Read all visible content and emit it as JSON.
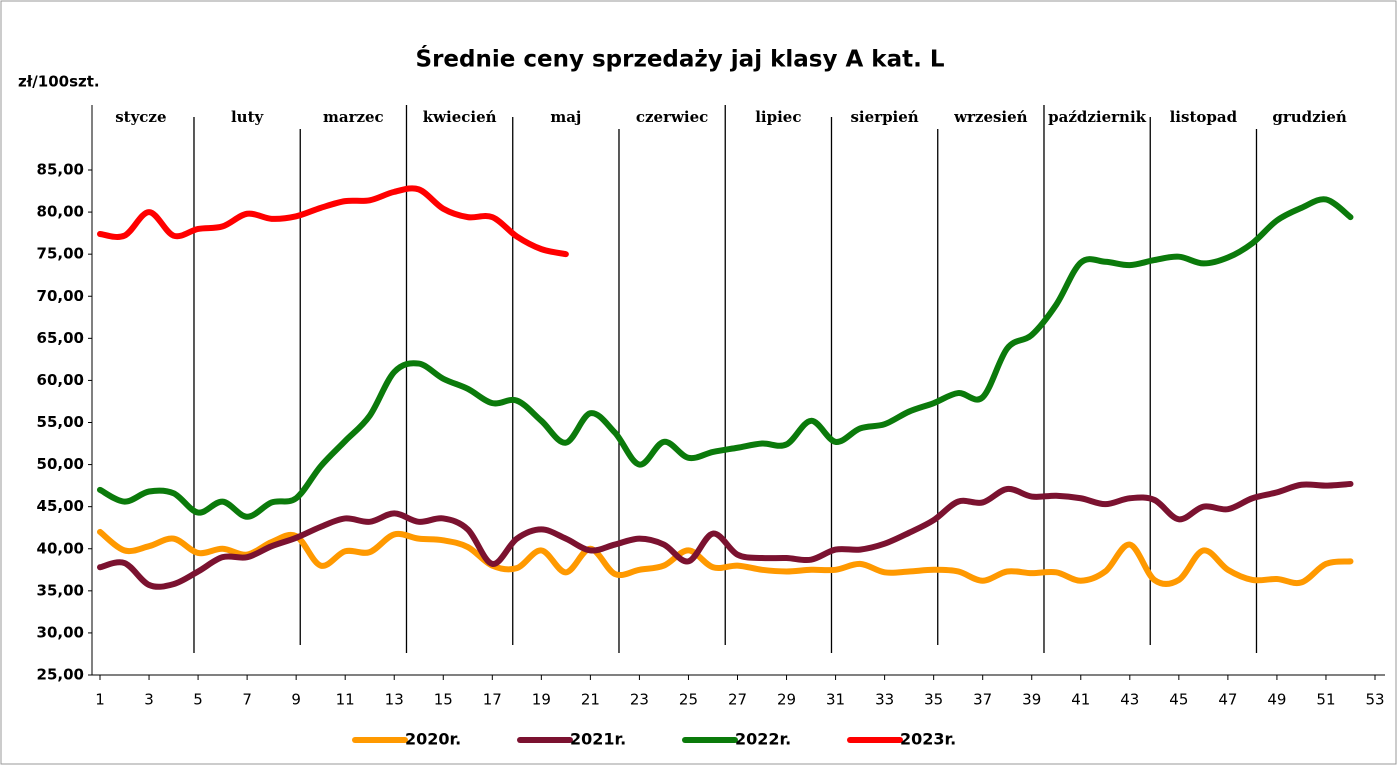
{
  "chart_data": {
    "type": "line",
    "title": "Średnie ceny sprzedaży jaj klasy A kat.  L",
    "y_label": "zł/100szt.",
    "months": [
      "stycze",
      "luty",
      "marzec",
      "kwiecień",
      "maj",
      "czerwiec",
      "lipiec",
      "sierpień",
      "wrzesień",
      "październik",
      "listopad",
      "grudzień"
    ],
    "x": [
      1,
      2,
      3,
      4,
      5,
      6,
      7,
      8,
      9,
      10,
      11,
      12,
      13,
      14,
      15,
      16,
      17,
      18,
      19,
      20,
      21,
      22,
      23,
      24,
      25,
      26,
      27,
      28,
      29,
      30,
      31,
      32,
      33,
      34,
      35,
      36,
      37,
      38,
      39,
      40,
      41,
      42,
      43,
      44,
      45,
      46,
      47,
      48,
      49,
      50,
      51,
      52
    ],
    "xlim": [
      1,
      53
    ],
    "xticks": [
      1,
      3,
      5,
      7,
      9,
      11,
      13,
      15,
      17,
      19,
      21,
      23,
      25,
      27,
      29,
      31,
      33,
      35,
      37,
      39,
      41,
      43,
      45,
      47,
      49,
      51,
      53
    ],
    "ylim": [
      25,
      85
    ],
    "yticks": [
      {
        "value": 25,
        "label": "25,00"
      },
      {
        "value": 30,
        "label": "30,00"
      },
      {
        "value": 35,
        "label": "35,00"
      },
      {
        "value": 40,
        "label": "40,00"
      },
      {
        "value": 45,
        "label": "45,00"
      },
      {
        "value": 50,
        "label": "50,00"
      },
      {
        "value": 55,
        "label": "55,00"
      },
      {
        "value": 60,
        "label": "60,00"
      },
      {
        "value": 65,
        "label": "65,00"
      },
      {
        "value": 70,
        "label": "70,00"
      },
      {
        "value": 75,
        "label": "75,00"
      },
      {
        "value": 80,
        "label": "80,00"
      },
      {
        "value": 85,
        "label": "85,00"
      }
    ],
    "series": [
      {
        "name": "2020r.",
        "color": "#ff9900",
        "values": [
          42,
          39.8,
          40.3,
          41.2,
          39.5,
          40,
          39.3,
          40.8,
          41.5,
          38,
          39.7,
          39.6,
          41.7,
          41.2,
          41,
          40.2,
          38,
          37.7,
          39.8,
          37.2,
          40,
          37,
          37.5,
          38,
          39.8,
          37.8,
          38,
          37.5,
          37.3,
          37.5,
          37.5,
          38.2,
          37.2,
          37.3,
          37.5,
          37.3,
          36.2,
          37.3,
          37.1,
          37.2,
          36.2,
          37.3,
          40.5,
          36.3,
          36.3,
          39.8,
          37.5,
          36.3,
          36.4,
          36,
          38.2,
          38.5
        ]
      },
      {
        "name": "2021r.",
        "color": "#7b1230",
        "values": [
          37.8,
          38.3,
          35.7,
          35.8,
          37.3,
          39,
          39,
          40.3,
          41.3,
          42.6,
          43.6,
          43.2,
          44.2,
          43.2,
          43.6,
          42.3,
          38.2,
          41.2,
          42.3,
          41.2,
          39.8,
          40.5,
          41.2,
          40.5,
          38.5,
          41.8,
          39.3,
          38.9,
          38.9,
          38.7,
          39.9,
          39.9,
          40.6,
          41.9,
          43.4,
          45.6,
          45.5,
          47.1,
          46.2,
          46.3,
          46,
          45.3,
          46,
          45.8,
          43.5,
          45,
          44.7,
          46,
          46.7,
          47.6,
          47.5,
          47.7
        ]
      },
      {
        "name": "2022r.",
        "color": "#0b7a0b",
        "values": [
          47,
          45.6,
          46.8,
          46.6,
          44.3,
          45.6,
          43.8,
          45.5,
          46,
          49.8,
          52.8,
          55.8,
          61,
          62,
          60.2,
          59,
          57.3,
          57.6,
          55.2,
          52.6,
          56.1,
          53.8,
          50,
          52.7,
          50.8,
          51.5,
          52,
          52.5,
          52.4,
          55.2,
          52.7,
          54.3,
          54.8,
          56.3,
          57.3,
          58.5,
          58,
          63.8,
          65.4,
          69,
          74,
          74.1,
          73.7,
          74.3,
          74.7,
          73.9,
          74.6,
          76.3,
          79,
          80.5,
          81.5,
          79.4
        ]
      },
      {
        "name": "2023r.",
        "color": "#ff0000",
        "values": [
          77.4,
          77.2,
          80,
          77.2,
          78,
          78.3,
          79.8,
          79.2,
          79.5,
          80.5,
          81.3,
          81.4,
          82.4,
          82.7,
          80.4,
          79.4,
          79.4,
          77.1,
          75.6,
          75,
          null,
          null,
          null,
          null,
          null,
          null,
          null,
          null,
          null,
          null,
          null,
          null,
          null,
          null,
          null,
          null,
          null,
          null,
          null,
          null,
          null,
          null,
          null,
          null,
          null,
          null,
          null,
          null,
          null,
          null,
          null,
          null
        ]
      }
    ]
  }
}
